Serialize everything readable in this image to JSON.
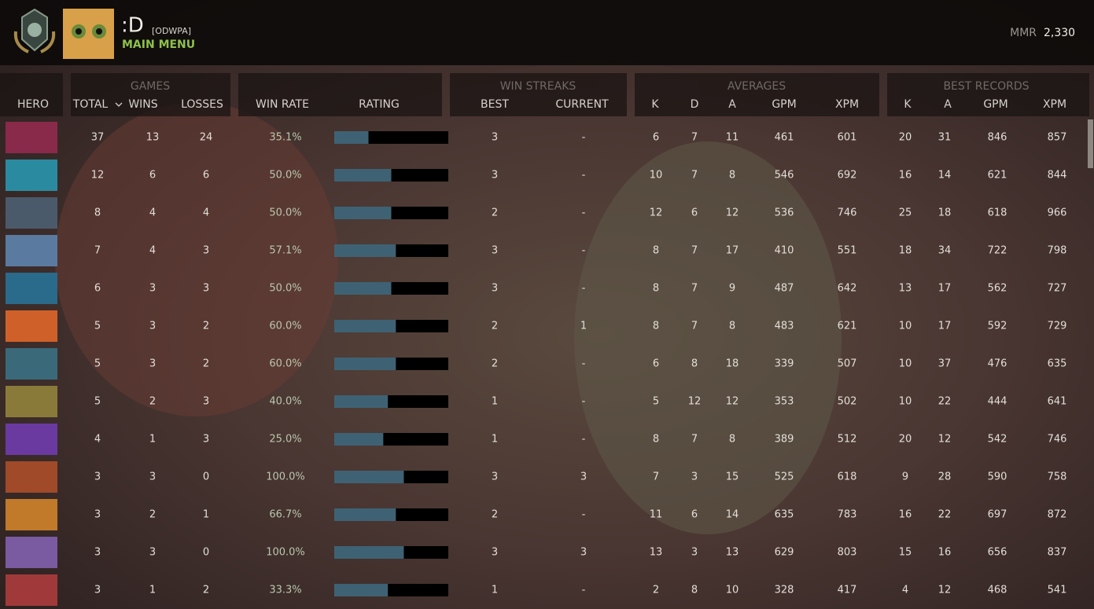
{
  "header": {
    "name": ":D",
    "tag": "[ODWPA]",
    "menu": "MAIN MENU",
    "mmr_label": "MMR",
    "mmr": "2,330"
  },
  "table": {
    "groups": {
      "games": "GAMES",
      "win_streaks": "WIN STREAKS",
      "averages": "AVERAGES",
      "best_records": "BEST RECORDS"
    },
    "columns": {
      "hero": "HERO",
      "total": "TOTAL",
      "wins": "WINS",
      "losses": "LOSSES",
      "win_rate": "WIN RATE",
      "rating": "RATING",
      "best": "BEST",
      "current": "CURRENT",
      "k": "K",
      "d": "D",
      "a": "A",
      "gpm": "GPM",
      "xpm": "XPM",
      "best_k": "K",
      "best_a": "A",
      "best_gpm": "GPM",
      "best_xpm": "XPM"
    },
    "rating_range": [
      0,
      100
    ],
    "rows": [
      {
        "total": 37,
        "wins": 13,
        "losses": 24,
        "win_rate": "35.1%",
        "rating": 30,
        "best": 3,
        "current": "-",
        "k": 6,
        "d": 7,
        "a": 11,
        "gpm": 461,
        "xpm": 601,
        "best_k": 20,
        "best_a": 31,
        "best_gpm": 846,
        "best_xpm": 857
      },
      {
        "total": 12,
        "wins": 6,
        "losses": 6,
        "win_rate": "50.0%",
        "rating": 50,
        "best": 3,
        "current": "-",
        "k": 10,
        "d": 7,
        "a": 8,
        "gpm": 546,
        "xpm": 692,
        "best_k": 16,
        "best_a": 14,
        "best_gpm": 621,
        "best_xpm": 844
      },
      {
        "total": 8,
        "wins": 4,
        "losses": 4,
        "win_rate": "50.0%",
        "rating": 50,
        "best": 2,
        "current": "-",
        "k": 12,
        "d": 6,
        "a": 12,
        "gpm": 536,
        "xpm": 746,
        "best_k": 25,
        "best_a": 18,
        "best_gpm": 618,
        "best_xpm": 966
      },
      {
        "total": 7,
        "wins": 4,
        "losses": 3,
        "win_rate": "57.1%",
        "rating": 54,
        "best": 3,
        "current": "-",
        "k": 8,
        "d": 7,
        "a": 17,
        "gpm": 410,
        "xpm": 551,
        "best_k": 18,
        "best_a": 34,
        "best_gpm": 722,
        "best_xpm": 798
      },
      {
        "total": 6,
        "wins": 3,
        "losses": 3,
        "win_rate": "50.0%",
        "rating": 50,
        "best": 3,
        "current": "-",
        "k": 8,
        "d": 7,
        "a": 9,
        "gpm": 487,
        "xpm": 642,
        "best_k": 13,
        "best_a": 17,
        "best_gpm": 562,
        "best_xpm": 727
      },
      {
        "total": 5,
        "wins": 3,
        "losses": 2,
        "win_rate": "60.0%",
        "rating": 54,
        "best": 2,
        "current": 1,
        "k": 8,
        "d": 7,
        "a": 8,
        "gpm": 483,
        "xpm": 621,
        "best_k": 10,
        "best_a": 17,
        "best_gpm": 592,
        "best_xpm": 729
      },
      {
        "total": 5,
        "wins": 3,
        "losses": 2,
        "win_rate": "60.0%",
        "rating": 54,
        "best": 2,
        "current": "-",
        "k": 6,
        "d": 8,
        "a": 18,
        "gpm": 339,
        "xpm": 507,
        "best_k": 10,
        "best_a": 37,
        "best_gpm": 476,
        "best_xpm": 635
      },
      {
        "total": 5,
        "wins": 2,
        "losses": 3,
        "win_rate": "40.0%",
        "rating": 47,
        "best": 1,
        "current": "-",
        "k": 5,
        "d": 12,
        "a": 12,
        "gpm": 353,
        "xpm": 502,
        "best_k": 10,
        "best_a": 22,
        "best_gpm": 444,
        "best_xpm": 641
      },
      {
        "total": 4,
        "wins": 1,
        "losses": 3,
        "win_rate": "25.0%",
        "rating": 43,
        "best": 1,
        "current": "-",
        "k": 8,
        "d": 7,
        "a": 8,
        "gpm": 389,
        "xpm": 512,
        "best_k": 20,
        "best_a": 12,
        "best_gpm": 542,
        "best_xpm": 746
      },
      {
        "total": 3,
        "wins": 3,
        "losses": 0,
        "win_rate": "100.0%",
        "rating": 61,
        "best": 3,
        "current": 3,
        "k": 7,
        "d": 3,
        "a": 15,
        "gpm": 525,
        "xpm": 618,
        "best_k": 9,
        "best_a": 28,
        "best_gpm": 590,
        "best_xpm": 758
      },
      {
        "total": 3,
        "wins": 2,
        "losses": 1,
        "win_rate": "66.7%",
        "rating": 54,
        "best": 2,
        "current": "-",
        "k": 11,
        "d": 6,
        "a": 14,
        "gpm": 635,
        "xpm": 783,
        "best_k": 16,
        "best_a": 22,
        "best_gpm": 697,
        "best_xpm": 872
      },
      {
        "total": 3,
        "wins": 3,
        "losses": 0,
        "win_rate": "100.0%",
        "rating": 61,
        "best": 3,
        "current": 3,
        "k": 13,
        "d": 3,
        "a": 13,
        "gpm": 629,
        "xpm": 803,
        "best_k": 15,
        "best_a": 16,
        "best_gpm": 656,
        "best_xpm": 837
      },
      {
        "total": 3,
        "wins": 1,
        "losses": 2,
        "win_rate": "33.3%",
        "rating": 47,
        "best": 1,
        "current": "-",
        "k": 2,
        "d": 8,
        "a": 10,
        "gpm": 328,
        "xpm": 417,
        "best_k": 4,
        "best_a": 12,
        "best_gpm": 468,
        "best_xpm": 541
      }
    ]
  }
}
